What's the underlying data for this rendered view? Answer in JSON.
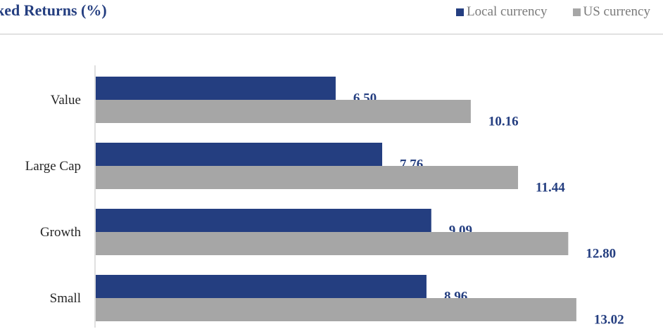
{
  "chart_data": {
    "type": "bar",
    "orientation": "horizontal",
    "title": "ked Returns (%)",
    "categories": [
      "Value",
      "Large Cap",
      "Growth",
      "Small"
    ],
    "series": [
      {
        "name": "Local currency",
        "color": "#243e80",
        "values": [
          6.5,
          7.76,
          9.09,
          8.96
        ]
      },
      {
        "name": "US currency",
        "color": "#a6a6a6",
        "values": [
          10.16,
          11.44,
          12.8,
          13.02
        ]
      }
    ],
    "xlim": [
      0,
      16
    ],
    "data_label_color": "#243e80",
    "grid": false,
    "legend": "top-right"
  }
}
